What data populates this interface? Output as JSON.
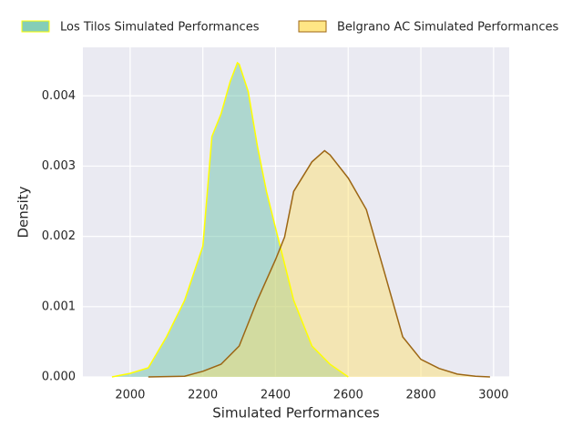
{
  "chart_data": {
    "type": "kde",
    "xlabel": "Simulated Performances",
    "ylabel": "Density",
    "xlim": [
      1870,
      3043
    ],
    "ylim": [
      0,
      0.00469
    ],
    "xticks": [
      2000,
      2200,
      2400,
      2600,
      2800,
      3000
    ],
    "yticks": [
      {
        "value": 0,
        "label": "0.000"
      },
      {
        "value": 0.001,
        "label": "0.001"
      },
      {
        "value": 0.002,
        "label": "0.002"
      },
      {
        "value": 0.003,
        "label": "0.003"
      },
      {
        "value": 0.004,
        "label": "0.004"
      }
    ],
    "grid": true,
    "legend": "top",
    "series": [
      {
        "name": "Los Tilos Simulated Performances",
        "color": "#66c2a5",
        "edgecolor": "#ffff00",
        "x": [
          1950,
          2000,
          2050,
          2100,
          2150,
          2200,
          2225,
          2250,
          2275,
          2295,
          2300,
          2325,
          2350,
          2375,
          2400,
          2425,
          2450,
          2500,
          2550,
          2600
        ],
        "values": [
          0,
          5e-05,
          0.00013,
          0.00057,
          0.00109,
          0.00186,
          0.00342,
          0.00374,
          0.0042,
          0.00447,
          0.00445,
          0.00406,
          0.00329,
          0.00264,
          0.00212,
          0.00161,
          0.00109,
          0.00044,
          0.00018,
          0
        ]
      },
      {
        "name": "Belgrano AC Simulated Performances",
        "color": "#ffe066",
        "edgecolor": "#9c6614",
        "x": [
          2050,
          2150,
          2200,
          2250,
          2300,
          2350,
          2400,
          2425,
          2450,
          2500,
          2535,
          2550,
          2600,
          2650,
          2700,
          2750,
          2800,
          2850,
          2900,
          2950,
          2990
        ],
        "values": [
          0,
          1e-05,
          8e-05,
          0.00018,
          0.00044,
          0.00109,
          0.00167,
          0.00199,
          0.00264,
          0.00306,
          0.00322,
          0.00316,
          0.00283,
          0.00238,
          0.00148,
          0.00057,
          0.00025,
          0.00012,
          4e-05,
          1e-05,
          0
        ]
      }
    ]
  }
}
